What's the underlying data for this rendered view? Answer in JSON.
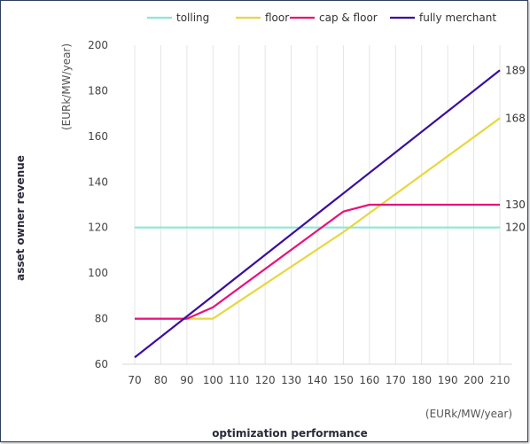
{
  "chart_data": {
    "type": "line",
    "xlabel": "optimization performance",
    "ylabel": "asset owner revenue",
    "x_unit": "(EURk/MW/year)",
    "y_unit": "(EURk/MW/year)",
    "xlim": [
      70,
      210
    ],
    "ylim": [
      60,
      200
    ],
    "x_ticks": [
      "70",
      "80",
      "90",
      "100",
      "110",
      "120",
      "130",
      "140",
      "150",
      "160",
      "170",
      "180",
      "190",
      "200",
      "210"
    ],
    "y_ticks": [
      "60",
      "80",
      "100",
      "120",
      "140",
      "160",
      "180",
      "200"
    ],
    "grid": {
      "vertical": true,
      "horizontal": false
    },
    "legend_position": "top",
    "series": [
      {
        "name": "tolling",
        "color": "#88e8d8",
        "x": [
          70,
          210
        ],
        "y": [
          120,
          120
        ],
        "end_label": "120"
      },
      {
        "name": "floor",
        "color": "#e6d840",
        "x": [
          70,
          100,
          150,
          210
        ],
        "y": [
          80,
          80,
          118,
          168
        ],
        "end_label": "168"
      },
      {
        "name": "cap & floor",
        "color": "#e8127a",
        "x": [
          70,
          90,
          100,
          150,
          160,
          210
        ],
        "y": [
          80,
          80,
          85,
          127,
          130,
          130
        ],
        "end_label": "130"
      },
      {
        "name": "fully merchant",
        "color": "#3b0ea0",
        "x": [
          70,
          210
        ],
        "y": [
          63,
          189
        ],
        "end_label": "189"
      }
    ]
  }
}
